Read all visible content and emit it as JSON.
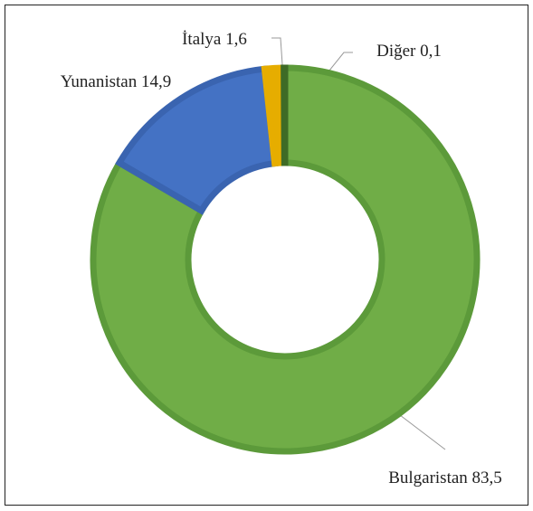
{
  "chart_data": {
    "type": "donut",
    "categories": [
      "Bulgaristan",
      "Yunanistan",
      "İtalya",
      "Diğer"
    ],
    "values": [
      83.5,
      14.9,
      1.6,
      0.1
    ],
    "value_labels": [
      "83,5",
      "14,9",
      "1,6",
      "0,1"
    ],
    "colors": [
      "#70ad47",
      "#4472c4",
      "#e6ad00",
      "#3e6b26"
    ]
  }
}
